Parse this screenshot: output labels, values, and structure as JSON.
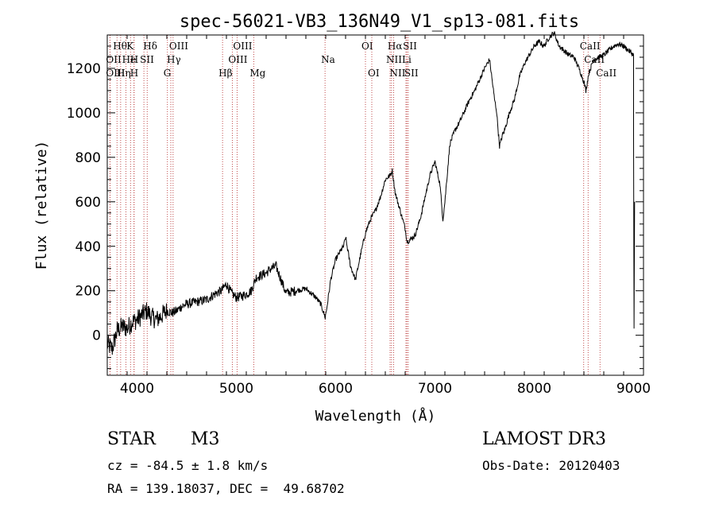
{
  "chart_data": {
    "type": "line",
    "title": "spec-56021-VB3_136N49_V1_sp13-081.fits",
    "xlabel": "Wavelength (Å)",
    "ylabel": "Flux (relative)",
    "xlim": [
      3700,
      9100
    ],
    "ylim": [
      -180,
      1350
    ],
    "xticks": [
      4000,
      5000,
      6000,
      7000,
      8000,
      9000
    ],
    "yticks": [
      0,
      200,
      400,
      600,
      800,
      1000,
      1200
    ],
    "series": [
      {
        "name": "flux",
        "x": [
          3700,
          3750,
          3800,
          3850,
          3900,
          3950,
          4000,
          4050,
          4100,
          4150,
          4200,
          4250,
          4300,
          4350,
          4400,
          4450,
          4500,
          4600,
          4700,
          4800,
          4850,
          4900,
          4950,
          5000,
          5050,
          5100,
          5150,
          5200,
          5250,
          5300,
          5350,
          5400,
          5450,
          5500,
          5600,
          5700,
          5750,
          5800,
          5850,
          5880,
          5895,
          5910,
          5950,
          6000,
          6050,
          6080,
          6100,
          6150,
          6200,
          6250,
          6300,
          6350,
          6400,
          6450,
          6500,
          6550,
          6570,
          6600,
          6650,
          6700,
          6720,
          6750,
          6800,
          6850,
          6900,
          6950,
          7000,
          7050,
          7080,
          7100,
          7150,
          7200,
          7250,
          7300,
          7350,
          7400,
          7450,
          7500,
          7550,
          7600,
          7620,
          7650,
          7680,
          7700,
          7750,
          7800,
          7850,
          7900,
          7950,
          8000,
          8050,
          8100,
          8150,
          8200,
          8250,
          8300,
          8350,
          8400,
          8450,
          8500,
          8520,
          8550,
          8600,
          8650,
          8700,
          8750,
          8800,
          8850,
          8900,
          8950,
          9000
        ],
        "y": [
          -40,
          -60,
          20,
          40,
          30,
          60,
          70,
          90,
          110,
          80,
          70,
          90,
          110,
          100,
          110,
          130,
          140,
          150,
          160,
          190,
          200,
          230,
          190,
          170,
          175,
          185,
          200,
          260,
          270,
          280,
          300,
          310,
          250,
          190,
          200,
          210,
          190,
          170,
          140,
          100,
          80,
          120,
          250,
          340,
          380,
          400,
          440,
          310,
          250,
          360,
          460,
          520,
          560,
          620,
          700,
          720,
          740,
          640,
          560,
          480,
          420,
          430,
          450,
          520,
          620,
          720,
          780,
          680,
          520,
          600,
          860,
          920,
          960,
          1010,
          1060,
          1100,
          1150,
          1200,
          1240,
          1060,
          1010,
          850,
          900,
          920,
          1000,
          1060,
          1160,
          1220,
          1260,
          1300,
          1320,
          1300,
          1340,
          1360,
          1300,
          1280,
          1260,
          1250,
          1200,
          1140,
          1100,
          1180,
          1240,
          1250,
          1260,
          1280,
          1300,
          1310,
          1300,
          1280,
          1260
        ]
      }
    ],
    "line_marks": [
      {
        "label": "Hθ",
        "row": 0,
        "wl": 3798
      },
      {
        "label": "K",
        "row": 0,
        "wl": 3934
      },
      {
        "label": "Hδ",
        "row": 0,
        "wl": 4102
      },
      {
        "label": "OIII",
        "row": 0,
        "wl": 4363
      },
      {
        "label": "OIII",
        "row": 0,
        "wl": 5007
      },
      {
        "label": "OI",
        "row": 0,
        "wl": 6300
      },
      {
        "label": "Hα",
        "row": 0,
        "wl": 6563
      },
      {
        "label": "SII",
        "row": 0,
        "wl": 6717
      },
      {
        "label": "CaII",
        "row": 0,
        "wl": 8498
      },
      {
        "label": "OII",
        "row": 1,
        "wl": 3727
      },
      {
        "label": "He",
        "row": 1,
        "wl": 3889
      },
      {
        "label": "H",
        "row": 1,
        "wl": 3970
      },
      {
        "label": "SII",
        "row": 1,
        "wl": 4069
      },
      {
        "label": "Hγ",
        "row": 1,
        "wl": 4340
      },
      {
        "label": "OIII",
        "row": 1,
        "wl": 4959
      },
      {
        "label": "Na",
        "row": 1,
        "wl": 5893
      },
      {
        "label": "NII",
        "row": 1,
        "wl": 6548
      },
      {
        "label": "Li",
        "row": 1,
        "wl": 6708
      },
      {
        "label": "CaII",
        "row": 1,
        "wl": 8542
      },
      {
        "label": "OIII",
        "row": 2,
        "wl": 3727
      },
      {
        "label": "Hη",
        "row": 2,
        "wl": 3835
      },
      {
        "label": "H",
        "row": 2,
        "wl": 3970
      },
      {
        "label": "G",
        "row": 2,
        "wl": 4306
      },
      {
        "label": "Hβ",
        "row": 2,
        "wl": 4861
      },
      {
        "label": "Mg",
        "row": 2,
        "wl": 5175
      },
      {
        "label": "OI",
        "row": 2,
        "wl": 6364
      },
      {
        "label": "NII",
        "row": 2,
        "wl": 6584
      },
      {
        "label": "SII",
        "row": 2,
        "wl": 6731
      },
      {
        "label": "CaII",
        "row": 2,
        "wl": 8662
      }
    ]
  },
  "info": {
    "object_class": "STAR",
    "subclass": "M3",
    "survey": "LAMOST DR3",
    "cz": "cz = -84.5 ± 1.8 km/s",
    "obs_date": "Obs-Date: 20120403",
    "coords": "RA = 139.18037, DEC =  49.68702"
  },
  "colors": {
    "axis": "#000000",
    "spectrum": "#000000",
    "line_marks": "#b22222",
    "background": "#ffffff"
  }
}
